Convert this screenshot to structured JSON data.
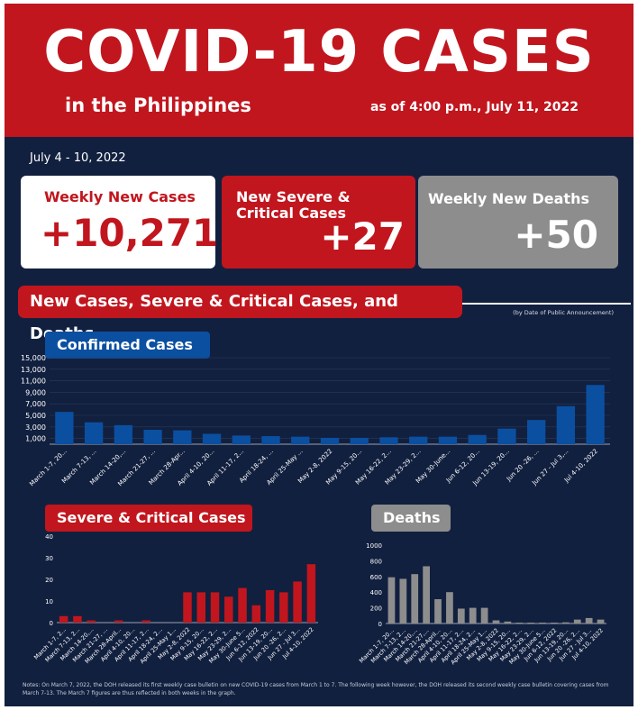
{
  "header": {
    "title": "COVID-19 CASES",
    "subtitle": "in the Philippines",
    "as_of": "as of 4:00 p.m., July 11, 2022"
  },
  "period": "July 4 - 10, 2022",
  "cards": {
    "cases": {
      "label": "Weekly New Cases",
      "value": "+10,271"
    },
    "severe": {
      "label_line1": "New Severe &",
      "label_line2": "Critical Cases",
      "value": "+27"
    },
    "deaths": {
      "label": "Weekly New Deaths",
      "value": "+50"
    }
  },
  "section": {
    "title": "New Cases, Severe & Critical Cases, and Deaths",
    "note": "(by Date of Public Announcement)"
  },
  "notes": "Notes: On March 7, 2022, the DOH released its first weekly case bulletin on new COVID-19 cases from March 1 to 7. The following week however, the DOH released its second weekly case bulletin covering cases from March 7-13. The March 7 figures are thus reflected in both weeks in the graph.",
  "colors": {
    "background": "#12203f",
    "red": "#c1161e",
    "blue": "#0b4fa1",
    "gray": "#8d8d8d",
    "card_white": "#ffffff"
  },
  "chart_data": [
    {
      "type": "bar",
      "title": "Confirmed Cases",
      "categories": [
        "March 1-7, 20...",
        "March 7-13, ...",
        "March 14-20,...",
        "March 21-27, ...",
        "March 28-Apr...",
        "April 4-10, 20...",
        "April 11-17, 2...",
        "April 18-24, ...",
        "April 25-May ...",
        "May 2-8, 2022",
        "May 9-15, 20...",
        "May 16-22, 2...",
        "May 23-29, 2...",
        "May 30-June...",
        "Jun 6-12, 20...",
        "Jun 13-19, 20...",
        "Jun 20 -26, ...",
        "Jun 27 - Jul 3,...",
        "Jul 4-10, 2022"
      ],
      "values": [
        5600,
        3800,
        3300,
        2500,
        2400,
        1800,
        1500,
        1400,
        1300,
        1100,
        1100,
        1200,
        1300,
        1300,
        1600,
        2700,
        4200,
        6600,
        10271
      ],
      "y_ticks": [
        "1,000",
        "3,000",
        "5,000",
        "7,000",
        "9,000",
        "11,000",
        "13,000",
        "15,000"
      ],
      "ylim": [
        0,
        15000
      ],
      "color": "#0b4fa1"
    },
    {
      "type": "bar",
      "title": "Severe & Critical Cases",
      "categories": [
        "March 1-7, 2...",
        "March 7-13, 2...",
        "March 14-20,...",
        "March 21-27, ...",
        "March 28-April...",
        "April 4-10, 20...",
        "April 11-17, 2...",
        "April 18-24, 2...",
        "April 25-May 1...",
        "May 2-8, 2022",
        "May 9-15, 20...",
        "May 16-22, 2...",
        "May 23-29, 2...",
        "May 30-June 5...",
        "Jun 6-12, 2022",
        "Jun 13-19, 20...",
        "Jun 20 -26, 2...",
        "Jun 27 - Jul 3...",
        "Jul 4-10, 2022"
      ],
      "values": [
        3,
        3,
        1,
        0,
        1,
        0,
        1,
        0,
        0,
        14,
        14,
        14,
        12,
        16,
        8,
        15,
        14,
        19,
        27
      ],
      "y_ticks": [
        "0",
        "10",
        "20",
        "30",
        "40"
      ],
      "ylim": [
        0,
        40
      ],
      "color": "#c1161e"
    },
    {
      "type": "bar",
      "title": "Deaths",
      "categories": [
        "March 1-7, 20...",
        "March 7-13, 2...",
        "March 14-20,...",
        "March 21-27,...",
        "March 28-April...",
        "April 4-10, 20...",
        "April 11-17, 2...",
        "April 18-24, 2...",
        "April 25-May 1...",
        "May 2-8, 2022",
        "May 9-15, 20...",
        "May 16-22, 2...",
        "May 23-29, 2...",
        "May 30-June 5...",
        "Jun 6-12, 2022",
        "Jun 13-19, 20...",
        "Jun 20 -26, 2...",
        "Jun 27 - Jul 3...",
        "Jul 4-10, 2022"
      ],
      "values": [
        590,
        570,
        630,
        730,
        310,
        400,
        190,
        200,
        200,
        40,
        25,
        10,
        5,
        10,
        5,
        15,
        50,
        70,
        50
      ],
      "y_ticks": [
        "0",
        "200",
        "400",
        "600",
        "800",
        "1000"
      ],
      "ylim": [
        0,
        1000
      ],
      "color": "#8d8d8d"
    }
  ]
}
